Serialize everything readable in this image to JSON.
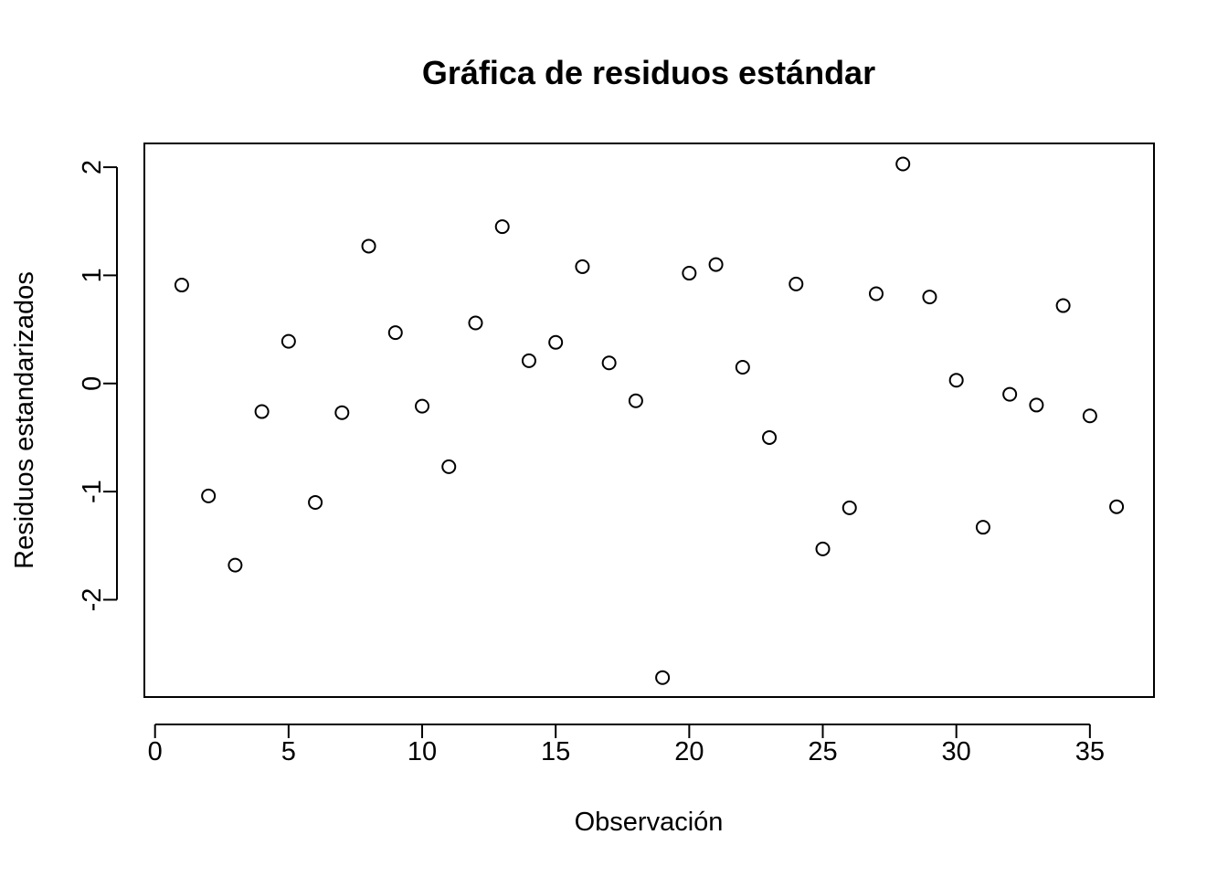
{
  "chart_data": {
    "type": "scatter",
    "title": "Gráfica de residuos estándar",
    "xlabel": "Observación",
    "ylabel": "Residuos estandarizados",
    "xlim": [
      -0.4,
      37.4
    ],
    "ylim": [
      -2.9,
      2.22
    ],
    "xticks": [
      0,
      5,
      10,
      15,
      20,
      25,
      30,
      35
    ],
    "yticks": [
      -2,
      -1,
      0,
      1,
      2
    ],
    "grid": false,
    "marker": "open-circle",
    "series": [
      {
        "x": [
          1,
          2,
          3,
          4,
          5,
          6,
          7,
          8,
          9,
          10,
          11,
          12,
          13,
          14,
          15,
          16,
          17,
          18,
          19,
          20,
          21,
          22,
          23,
          24,
          25,
          26,
          27,
          28,
          29,
          30,
          31,
          32,
          33,
          34,
          35,
          36
        ],
        "y": [
          0.91,
          -1.04,
          -1.68,
          -0.26,
          0.39,
          -1.1,
          -0.27,
          1.27,
          0.47,
          -0.21,
          -0.77,
          0.56,
          1.45,
          0.21,
          0.38,
          1.08,
          0.19,
          -0.16,
          -2.72,
          1.02,
          1.1,
          0.15,
          -0.5,
          0.92,
          -1.53,
          -1.15,
          0.83,
          2.03,
          0.8,
          0.03,
          -1.33,
          -0.1,
          -0.2,
          0.72,
          -0.3,
          -1.14
        ]
      }
    ]
  }
}
